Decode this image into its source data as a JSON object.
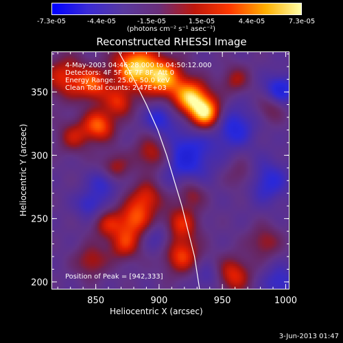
{
  "chart_data": {
    "type": "heatmap",
    "title": "Reconstructed RHESSI Image",
    "xlabel": "Heliocentric X (arcsec)",
    "ylabel": "Heliocentric Y (arcsec)",
    "xlim": [
      815,
      1003
    ],
    "ylim": [
      194,
      382
    ],
    "xticks": [
      "850",
      "900",
      "950",
      "1000"
    ],
    "yticks": [
      "200",
      "250",
      "300",
      "350"
    ],
    "colorbar": {
      "ticks": [
        "-7.3e-05",
        "-4.4e-05",
        "-1.5e-05",
        "1.5e-05",
        "4.4e-05",
        "7.3e-05"
      ],
      "units": "(photons cm⁻² s⁻¹ asec⁻²)",
      "colors": [
        "#0000ff",
        "#3b2bd6",
        "#5a3aa0",
        "#6a2f7a",
        "#c0180c",
        "#ff3a00",
        "#ffb000",
        "#ffffa8"
      ]
    },
    "annotations": [
      "4-May-2003 04:46:28.000 to 04:50:12.000",
      "Detectors: 4F 5F 6F 7F 8F, Att 0",
      "Energy Range: 25.0 - 50.0 keV",
      "Clean    Total counts: 2.47E+03"
    ],
    "peak_label": "Position of Peak = [942,333]",
    "peak": [
      942,
      333
    ],
    "limb_curve": [
      [
        868,
        382
      ],
      [
        880,
        360
      ],
      [
        890,
        340
      ],
      [
        899,
        320
      ],
      [
        906,
        300
      ],
      [
        912,
        280
      ],
      [
        918,
        260
      ],
      [
        923,
        240
      ],
      [
        928,
        220
      ],
      [
        932,
        194
      ]
    ],
    "blobs": [
      [
        880,
        370,
        1.0,
        12
      ],
      [
        903,
        362,
        0.9,
        11
      ],
      [
        925,
        346,
        0.95,
        10
      ],
      [
        937,
        333,
        1.0,
        9
      ],
      [
        826,
        362,
        0.6,
        12
      ],
      [
        848,
        356,
        0.65,
        9
      ],
      [
        852,
        324,
        0.75,
        9
      ],
      [
        868,
        342,
        0.55,
        8
      ],
      [
        832,
        315,
        0.45,
        9
      ],
      [
        864,
        290,
        0.5,
        8
      ],
      [
        895,
        302,
        0.6,
        10
      ],
      [
        890,
        268,
        0.55,
        9
      ],
      [
        880,
        250,
        0.7,
        10
      ],
      [
        872,
        230,
        0.55,
        9
      ],
      [
        858,
        246,
        0.45,
        8
      ],
      [
        916,
        246,
        0.6,
        10
      ],
      [
        917,
        221,
        0.65,
        10
      ],
      [
        925,
        270,
        0.4,
        8
      ],
      [
        846,
        217,
        0.45,
        9
      ],
      [
        958,
        206,
        0.6,
        10
      ],
      [
        983,
        232,
        0.4,
        9
      ],
      [
        988,
        338,
        0.35,
        8
      ],
      [
        965,
        285,
        0.3,
        9
      ],
      [
        960,
        360,
        0.4,
        8
      ]
    ],
    "dips": [
      [
        920,
        300,
        -0.55,
        16
      ],
      [
        958,
        323,
        -0.5,
        12
      ],
      [
        995,
        352,
        -0.55,
        9
      ],
      [
        900,
        330,
        -0.45,
        8
      ],
      [
        857,
        280,
        -0.45,
        8
      ],
      [
        845,
        262,
        -0.4,
        8
      ],
      [
        985,
        280,
        -0.45,
        12
      ],
      [
        900,
        236,
        -0.35,
        9
      ],
      [
        995,
        200,
        -0.4,
        10
      ],
      [
        938,
        205,
        -0.3,
        8
      ]
    ]
  }
}
